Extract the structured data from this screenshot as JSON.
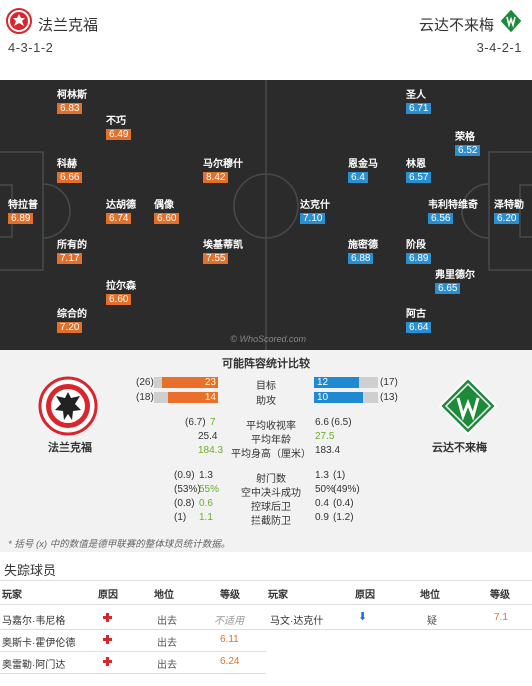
{
  "header": {
    "home_team": "法兰克福",
    "away_team": "云达不来梅",
    "home_formation": "4-3-1-2",
    "away_formation": "3-4-2-1"
  },
  "pitch": {
    "watermark": "© WhoScored.com",
    "home_players": [
      {
        "name": "柯林斯",
        "rating": "6.83"
      },
      {
        "name": "不巧",
        "rating": "6.49"
      },
      {
        "name": "科赫",
        "rating": "6.66"
      },
      {
        "name": "马尔穆什",
        "rating": "8.42"
      },
      {
        "name": "特拉普",
        "rating": "6.89"
      },
      {
        "name": "达胡德",
        "rating": "6.74"
      },
      {
        "name": "偶像",
        "rating": "6.60"
      },
      {
        "name": "所有的",
        "rating": "7.17"
      },
      {
        "name": "埃基蒂凯",
        "rating": "7.55"
      },
      {
        "name": "拉尔森",
        "rating": "6.60"
      },
      {
        "name": "综合的",
        "rating": "7.20"
      }
    ],
    "away_players": [
      {
        "name": "圣人",
        "rating": "6.71"
      },
      {
        "name": "荣格",
        "rating": "6.52"
      },
      {
        "name": "恩金马",
        "rating": "6.4"
      },
      {
        "name": "林恩",
        "rating": "6.57"
      },
      {
        "name": "达克什",
        "rating": "7.10"
      },
      {
        "name": "韦利特维奇",
        "rating": "6.56"
      },
      {
        "name": "泽特勒",
        "rating": "6.20"
      },
      {
        "name": "施密德",
        "rating": "6.88"
      },
      {
        "name": "阶段",
        "rating": "6.89"
      },
      {
        "name": "弗里德尔",
        "rating": "6.65"
      },
      {
        "name": "阿古",
        "rating": "6.64"
      }
    ]
  },
  "stats": {
    "title": "可能阵容统计比较",
    "home_team": "法兰克福",
    "away_team": "云达不来梅",
    "bars": [
      {
        "label": "目标",
        "home_total": "(26)",
        "home": "23",
        "away": "12",
        "away_total": "(17)",
        "home_frac": 0.88,
        "away_frac": 0.71
      },
      {
        "label": "助攻",
        "home_total": "(18)",
        "home": "14",
        "away": "10",
        "away_total": "(13)",
        "home_frac": 0.78,
        "away_frac": 0.77
      }
    ],
    "lines1": [
      {
        "label": "平均收视率",
        "home_pre": "(6.7)",
        "home": "7",
        "away": "6.6",
        "away_post": "(6.5)",
        "home_green": true,
        "away_green": false
      },
      {
        "label": "平均年龄",
        "home_pre": "",
        "home": "25.4",
        "away": "27.5",
        "away_post": "",
        "home_green": false,
        "away_green": true
      },
      {
        "label": "平均身高（厘米）",
        "home_pre": "",
        "home": "184.3",
        "away": "183.4",
        "away_post": "",
        "home_green": true,
        "away_green": false
      }
    ],
    "lines2": [
      {
        "label": "射门数",
        "home_pre": "(0.9)",
        "home": "1.3",
        "away": "1.3",
        "away_post": "(1)",
        "home_green": false,
        "away_green": false
      },
      {
        "label": "空中决斗成功",
        "home_pre": "(53%)",
        "home": "55%",
        "away": "50%",
        "away_post": "(49%)",
        "home_green": true,
        "away_green": false
      },
      {
        "label": "控球后卫",
        "home_pre": "(0.8)",
        "home": "0.6",
        "away": "0.4",
        "away_post": "(0.4)",
        "home_green": true,
        "away_green": false
      },
      {
        "label": "拦截防卫",
        "home_pre": "(1)",
        "home": "1.1",
        "away": "0.9",
        "away_post": "(1.2)",
        "home_green": true,
        "away_green": false
      }
    ],
    "footnote": "* 括号 (x) 中的数值是德甲联赛的整体球员统计数据。"
  },
  "missing": {
    "title": "失踪球员",
    "headers": {
      "player": "玩家",
      "reason": "原因",
      "position": "地位",
      "rating": "等级"
    },
    "home_rows": [
      {
        "player": "马嘉尔·韦尼格",
        "position": "出去",
        "rating": "不适用",
        "rating_na": true
      },
      {
        "player": "奥斯卡·霍伊伦德",
        "position": "出去",
        "rating": "6.11",
        "rating_na": false
      },
      {
        "player": "奥雷勒·阿门达",
        "position": "出去",
        "rating": "6.24",
        "rating_na": false
      }
    ],
    "away_rows": [
      {
        "player": "马文·达克什",
        "position": "疑",
        "rating": "7.1"
      }
    ]
  }
}
